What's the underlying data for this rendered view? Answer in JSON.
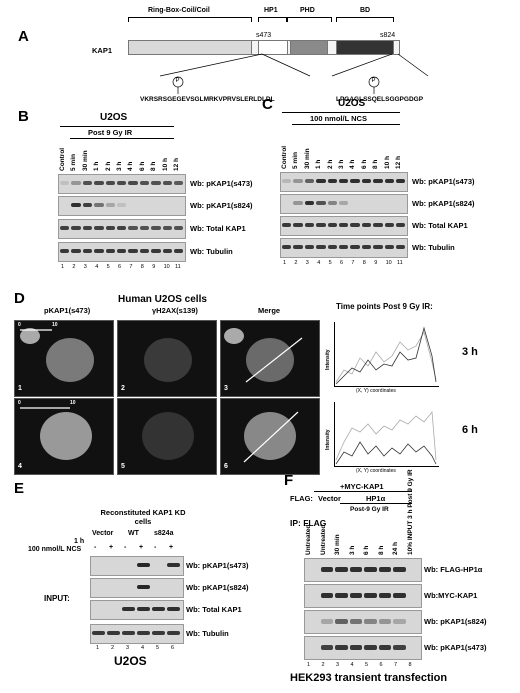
{
  "panel_a": {
    "label": "A",
    "protein": "KAP1",
    "domains": [
      "Ring-Box-Coil/Coil",
      "HP1",
      "PHD",
      "BD"
    ],
    "sites": [
      "s473",
      "s824"
    ],
    "seq_left": "VKRSRSGEGEVSGLMRKVPRVSLERLDLDL",
    "seq_right": "LPGAGLSSQELSGGPGDGP",
    "phospho_mark": "P"
  },
  "panel_b": {
    "label": "B",
    "cell": "U2OS",
    "treatment": "Post 9 Gy IR",
    "lanes": [
      "Control",
      "5 min",
      "30 min",
      "1 h",
      "2 h",
      "3 h",
      "4 h",
      "6 h",
      "8 h",
      "10 h",
      "12 h"
    ],
    "lane_numbers": [
      "1",
      "2",
      "3",
      "4",
      "5",
      "6",
      "7",
      "8",
      "9",
      "10",
      "11"
    ],
    "blots": [
      "Wb: pKAP1(s473)",
      "Wb: pKAP1(s824)",
      "Wb: Total KAP1",
      "Wb: Tubulin"
    ]
  },
  "panel_c": {
    "label": "C",
    "cell": "U2OS",
    "treatment": "100 nmol/L NCS",
    "lanes": [
      "Control",
      "5 min",
      "30 min",
      "1 h",
      "2 h",
      "3 h",
      "4 h",
      "6 h",
      "8 h",
      "10 h",
      "12 h"
    ],
    "lane_numbers": [
      "1",
      "2",
      "3",
      "4",
      "5",
      "6",
      "7",
      "8",
      "9",
      "10",
      "11"
    ],
    "blots": [
      "Wb: pKAP1(s473)",
      "Wb: pKAP1(s824)",
      "Wb: Total KAP1",
      "Wb: Tubulin"
    ]
  },
  "panel_d": {
    "label": "D",
    "title": "Human U2OS cells",
    "cols": [
      "pKAP1(s473)",
      "γH2AX(s139)",
      "Merge"
    ],
    "time_title": "Time points Post 9 Gy IR:",
    "times": [
      "3 h",
      "6 h"
    ],
    "image_numbers": [
      "1",
      "2",
      "3",
      "4",
      "5",
      "6"
    ],
    "scale_ticks": [
      "0",
      "10"
    ],
    "y_axis": "Intensity",
    "x_axis": "(X, Y) coordinates"
  },
  "panel_e": {
    "label": "E",
    "header": "Reconstituted KAP1 KD cells",
    "groups": [
      "Vector",
      "WT",
      "s824a"
    ],
    "time": "1 h",
    "treatment": "100 nmol/L NCS",
    "signs": [
      "-",
      "+",
      "-",
      "+",
      "-",
      "+"
    ],
    "input_label": "INPUT:",
    "blots": [
      "Wb: pKAP1(s473)",
      "Wb: pKAP1(s824)",
      "Wb: Total KAP1",
      "Wb: Tubulin"
    ],
    "lane_numbers": [
      "1",
      "2",
      "3",
      "4",
      "5",
      "6"
    ],
    "cell": "U2OS"
  },
  "panel_f": {
    "label": "F",
    "myc_header": "+MYC-KAP1",
    "flag_label": "FLAG:",
    "vector": "Vector",
    "hp1": "HP1α",
    "post_ir": "Post-9 Gy IR",
    "ip_label": "IP: FLAG",
    "lanes": [
      "Untreated",
      "Untreated",
      "30 min",
      "3 h",
      "6 h",
      "8 h",
      "24 h",
      "10% INPUT 3 h Post 9 Gy IR"
    ],
    "lane_numbers": [
      "1",
      "2",
      "3",
      "4",
      "5",
      "6",
      "7",
      "8"
    ],
    "blots": [
      "Wb: FLAG-HP1α",
      "Wb:MYC-KAP1",
      "Wb: pKAP1(s824)",
      "Wb: pKAP1(s473)"
    ],
    "caption": "HEK293  transient transfection"
  }
}
